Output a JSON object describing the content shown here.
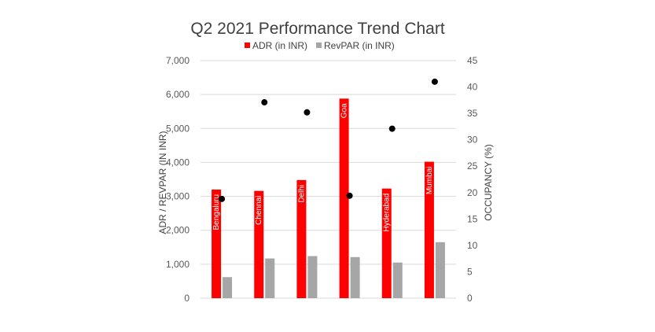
{
  "chart_data": {
    "type": "bar",
    "title": "Q2 2021 Performance Trend Chart",
    "categories": [
      "Bengaluru",
      "Chennai",
      "Delhi",
      "Goa",
      "Hyderabad",
      "Mumbai"
    ],
    "series": [
      {
        "name": "ADR (in INR)",
        "kind": "bar",
        "axis": "left",
        "color": "#ff0000",
        "values": [
          3200,
          3160,
          3480,
          5880,
          3230,
          4020
        ]
      },
      {
        "name": "RevPAR (in INR)",
        "kind": "bar",
        "axis": "left",
        "color": "#a6a6a6",
        "values": [
          620,
          1170,
          1240,
          1210,
          1050,
          1650
        ]
      },
      {
        "name": "",
        "kind": "scatter",
        "axis": "right",
        "color": "#000000",
        "values": [
          18.8,
          37.1,
          35.2,
          19.4,
          32.1,
          41.0
        ]
      }
    ],
    "ylabel": "ADR / REVPAR (IN INR)",
    "y2label": "OCCUPANCY (%)",
    "ylim": [
      0,
      7000
    ],
    "y2lim": [
      0,
      45
    ],
    "yticks": [
      "0",
      "1,000",
      "2,000",
      "3,000",
      "4,000",
      "5,000",
      "6,000",
      "7,000"
    ],
    "y2ticks": [
      "0",
      "5",
      "10",
      "15",
      "20",
      "25",
      "30",
      "35",
      "40",
      "45"
    ],
    "grid": true,
    "legend_position": "top"
  }
}
